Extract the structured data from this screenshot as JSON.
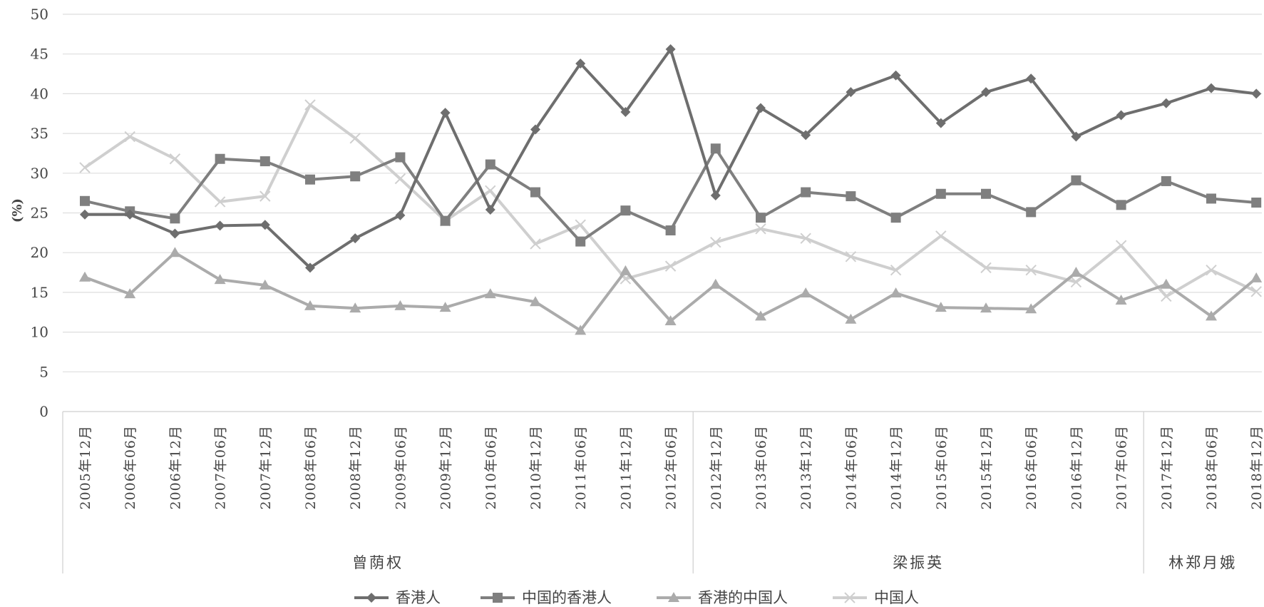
{
  "chart_data": {
    "type": "line",
    "ylabel": "(%)",
    "ylim": [
      0,
      50
    ],
    "yticks": [
      0,
      5,
      10,
      15,
      20,
      25,
      30,
      35,
      40,
      45,
      50
    ],
    "grid": true,
    "legend_position": "bottom",
    "categories": [
      "2005年12月",
      "2006年06月",
      "2006年12月",
      "2007年06月",
      "2007年12月",
      "2008年06月",
      "2008年12月",
      "2009年06月",
      "2009年12月",
      "2010年06月",
      "2010年12月",
      "2011年06月",
      "2011年12月",
      "2012年06月",
      "2012年12月",
      "2013年06月",
      "2013年12月",
      "2014年06月",
      "2014年12月",
      "2015年06月",
      "2015年12月",
      "2016年06月",
      "2016年12月",
      "2017年06月",
      "2017年12月",
      "2018年06月",
      "2018年12月"
    ],
    "groups": [
      {
        "label": "曾荫权",
        "count": 14
      },
      {
        "label": "梁振英",
        "count": 10
      },
      {
        "label": "林郑月娥",
        "count": 3
      }
    ],
    "series": [
      {
        "name": "香港人",
        "marker": "diamond",
        "color": "#6e6e6e",
        "values": [
          24.8,
          24.8,
          22.4,
          23.4,
          23.5,
          18.1,
          21.8,
          24.7,
          37.6,
          25.4,
          35.5,
          43.8,
          37.7,
          45.6,
          27.2,
          38.2,
          34.8,
          40.2,
          42.3,
          36.3,
          40.2,
          41.9,
          34.6,
          37.3,
          38.8,
          40.7,
          40.0
        ]
      },
      {
        "name": "中国的香港人",
        "marker": "square",
        "color": "#7f7f7f",
        "values": [
          26.5,
          25.2,
          24.3,
          31.8,
          31.5,
          29.2,
          29.6,
          32.0,
          24.0,
          31.1,
          27.6,
          21.4,
          25.3,
          22.8,
          33.1,
          24.4,
          27.6,
          27.1,
          24.4,
          27.4,
          27.4,
          25.1,
          29.1,
          26.0,
          29.0,
          26.8,
          26.3
        ]
      },
      {
        "name": "香港的中国人",
        "marker": "triangle",
        "color": "#ababab",
        "values": [
          16.9,
          14.8,
          20.0,
          16.6,
          15.9,
          13.3,
          13.0,
          13.3,
          13.1,
          14.8,
          13.8,
          10.2,
          17.7,
          11.4,
          16.0,
          12.0,
          14.9,
          11.6,
          14.9,
          13.1,
          13.0,
          12.9,
          17.5,
          14.0,
          16.0,
          12.0,
          16.8
        ]
      },
      {
        "name": "中国人",
        "marker": "x",
        "color": "#cfcfcf",
        "values": [
          30.7,
          34.6,
          31.8,
          26.4,
          27.1,
          38.6,
          34.4,
          29.3,
          24.0,
          27.8,
          21.1,
          23.5,
          16.7,
          18.3,
          21.3,
          23.0,
          21.8,
          19.5,
          17.8,
          22.1,
          18.1,
          17.8,
          16.3,
          20.9,
          14.5,
          17.8,
          15.1
        ]
      }
    ]
  }
}
